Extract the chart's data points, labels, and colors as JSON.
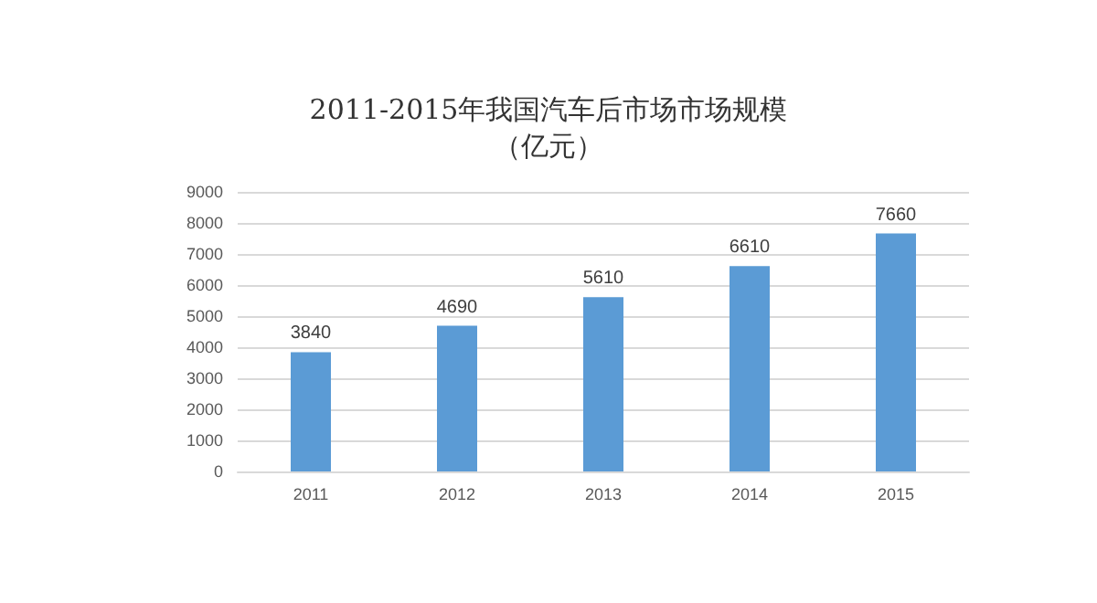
{
  "chart_data": {
    "type": "bar",
    "title": "2011-2015年我国汽车后市场市场规模（亿元）",
    "categories": [
      "2011",
      "2012",
      "2013",
      "2014",
      "2015"
    ],
    "values": [
      3840,
      4690,
      5610,
      6610,
      7660
    ],
    "color": "#5b9bd5",
    "ylim": [
      0,
      9000
    ],
    "yticks": [
      0,
      1000,
      2000,
      3000,
      4000,
      5000,
      6000,
      7000,
      8000,
      9000
    ],
    "grid": "y",
    "data_labels": true
  }
}
